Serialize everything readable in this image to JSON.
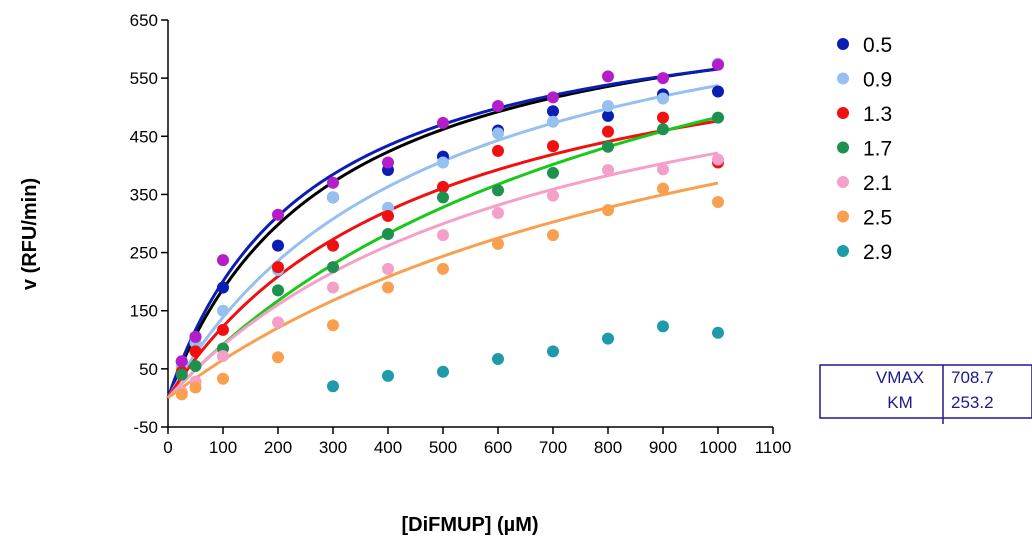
{
  "chart_data": {
    "type": "scatter",
    "xlabel": "[DiFMUP] (µM)",
    "ylabel": "v (RFU/min)",
    "xlim": [
      0,
      1100
    ],
    "ylim": [
      -50,
      650
    ],
    "xticks": [
      0,
      100,
      200,
      300,
      400,
      500,
      600,
      700,
      800,
      900,
      1000,
      1100
    ],
    "yticks": [
      -50,
      50,
      150,
      250,
      350,
      450,
      550,
      650
    ],
    "legend_position": "right",
    "series": [
      {
        "name": "0.5",
        "color": "#0a1eb4",
        "points": [
          [
            25,
            62
          ],
          [
            50,
            105
          ],
          [
            100,
            190
          ],
          [
            200,
            262
          ],
          [
            300,
            345
          ],
          [
            400,
            392
          ],
          [
            500,
            415
          ],
          [
            600,
            460
          ],
          [
            700,
            493
          ],
          [
            800,
            485
          ],
          [
            900,
            522
          ],
          [
            1000,
            527
          ]
        ],
        "fit": {
          "vmax": 708.7,
          "km": 253.2,
          "color": "#0a1eb4"
        }
      },
      {
        "name": "0.9",
        "color": "#96c0f0",
        "points": [
          [
            25,
            55
          ],
          [
            50,
            95
          ],
          [
            100,
            150
          ],
          [
            200,
            220
          ],
          [
            300,
            345
          ],
          [
            400,
            327
          ],
          [
            500,
            405
          ],
          [
            600,
            455
          ],
          [
            700,
            475
          ],
          [
            800,
            502
          ],
          [
            900,
            515
          ],
          [
            1000,
            575
          ]
        ],
        "fit": {
          "vmax": 790,
          "km": 470,
          "color": "#96c0f0"
        }
      },
      {
        "name": "1.3",
        "color": "#f01010",
        "points": [
          [
            25,
            45
          ],
          [
            50,
            80
          ],
          [
            100,
            117
          ],
          [
            200,
            225
          ],
          [
            300,
            262
          ],
          [
            400,
            313
          ],
          [
            500,
            363
          ],
          [
            600,
            425
          ],
          [
            700,
            433
          ],
          [
            800,
            458
          ],
          [
            900,
            482
          ],
          [
            1000,
            405
          ]
        ],
        "fit": {
          "vmax": 700,
          "km": 470,
          "color": "#f01010"
        }
      },
      {
        "name": "1.7",
        "color": "#1e9050",
        "points": [
          [
            25,
            40
          ],
          [
            50,
            55
          ],
          [
            100,
            85
          ],
          [
            200,
            185
          ],
          [
            300,
            225
          ],
          [
            400,
            282
          ],
          [
            500,
            345
          ],
          [
            600,
            357
          ],
          [
            700,
            387
          ],
          [
            800,
            432
          ],
          [
            900,
            462
          ],
          [
            1000,
            482
          ]
        ],
        "fit": {
          "vmax": 915,
          "km": 895,
          "color": "#19c819"
        }
      },
      {
        "name": "2.1",
        "color": "#f5a0c8",
        "points": [
          [
            25,
            10
          ],
          [
            50,
            28
          ],
          [
            100,
            72
          ],
          [
            200,
            130
          ],
          [
            300,
            190
          ],
          [
            400,
            222
          ],
          [
            500,
            280
          ],
          [
            600,
            318
          ],
          [
            700,
            348
          ],
          [
            800,
            392
          ],
          [
            900,
            393
          ],
          [
            1000,
            410
          ]
        ],
        "fit": {
          "vmax": 710,
          "km": 685,
          "color": "#f5a0c8"
        }
      },
      {
        "name": "2.5",
        "color": "#f8a050",
        "points": [
          [
            25,
            6
          ],
          [
            50,
            18
          ],
          [
            100,
            33
          ],
          [
            200,
            70
          ],
          [
            300,
            125
          ],
          [
            400,
            190
          ],
          [
            500,
            222
          ],
          [
            600,
            265
          ],
          [
            700,
            280
          ],
          [
            800,
            323
          ],
          [
            900,
            360
          ],
          [
            1000,
            337
          ]
        ],
        "fit": {
          "vmax": 765,
          "km": 1070,
          "color": "#f8a050"
        }
      },
      {
        "name": "2.9",
        "color": "#1e9aaa",
        "points": [
          [
            300,
            20
          ],
          [
            400,
            38
          ],
          [
            500,
            45
          ],
          [
            600,
            67
          ],
          [
            700,
            80
          ],
          [
            800,
            102
          ],
          [
            900,
            123
          ],
          [
            1000,
            112
          ]
        ]
      }
    ],
    "extra_curve": {
      "vmax": 730,
      "km": 290,
      "color": "#000000"
    },
    "extra_points": {
      "color": "#b41ec8",
      "points": [
        [
          25,
          63
        ],
        [
          50,
          105
        ],
        [
          100,
          237
        ],
        [
          200,
          315
        ],
        [
          300,
          370
        ],
        [
          400,
          405
        ],
        [
          500,
          473
        ],
        [
          600,
          502
        ],
        [
          700,
          517
        ],
        [
          800,
          553
        ],
        [
          900,
          550
        ],
        [
          1000,
          573
        ]
      ]
    },
    "parameters_table": {
      "rows": [
        {
          "label": "VMAX",
          "value": "708.7"
        },
        {
          "label": "KM",
          "value": "253.2"
        }
      ]
    }
  }
}
